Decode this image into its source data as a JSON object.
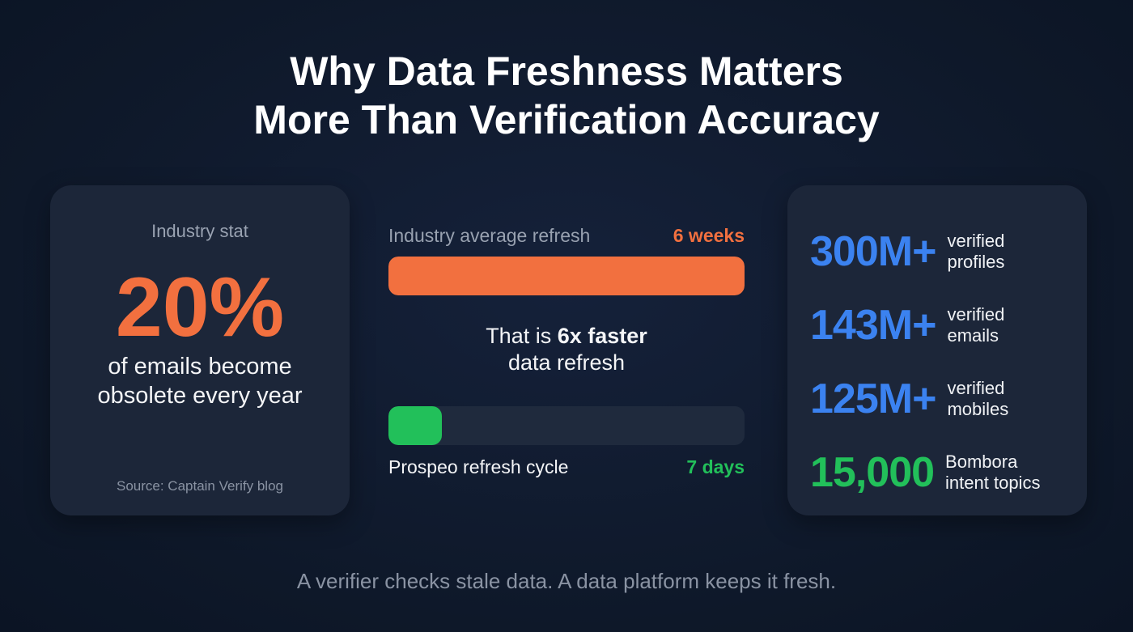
{
  "title_line1": "Why Data Freshness Matters",
  "title_line2": "More Than Verification Accuracy",
  "left_card": {
    "label": "Industry stat",
    "big": "20%",
    "desc_line1": "of emails become",
    "desc_line2": "obsolete every year",
    "source": "Source: Captain Verify blog"
  },
  "comparison": {
    "industry_label": "Industry average refresh",
    "industry_value": "6 weeks",
    "industry_fill": 1.0,
    "msg_prefix": "That is ",
    "msg_bold": "6x faster",
    "msg_line2": "data refresh",
    "prospeo_label": "Prospeo refresh cycle",
    "prospeo_value": "7 days",
    "prospeo_fill": 0.15
  },
  "stats": [
    {
      "value": "300M+",
      "l1": "verified",
      "l2": "profiles"
    },
    {
      "value": "143M+",
      "l1": "verified",
      "l2": "emails"
    },
    {
      "value": "125M+",
      "l1": "verified",
      "l2": "mobiles"
    },
    {
      "value": "15,000",
      "l1": "Bombora",
      "l2": "intent topics"
    }
  ],
  "footer": "A verifier checks stale data. A data platform keeps it fresh.",
  "colors": {
    "orange": "#f2703f",
    "green": "#22c05a",
    "blue": "#3b82f0",
    "card": "#1c2639"
  }
}
